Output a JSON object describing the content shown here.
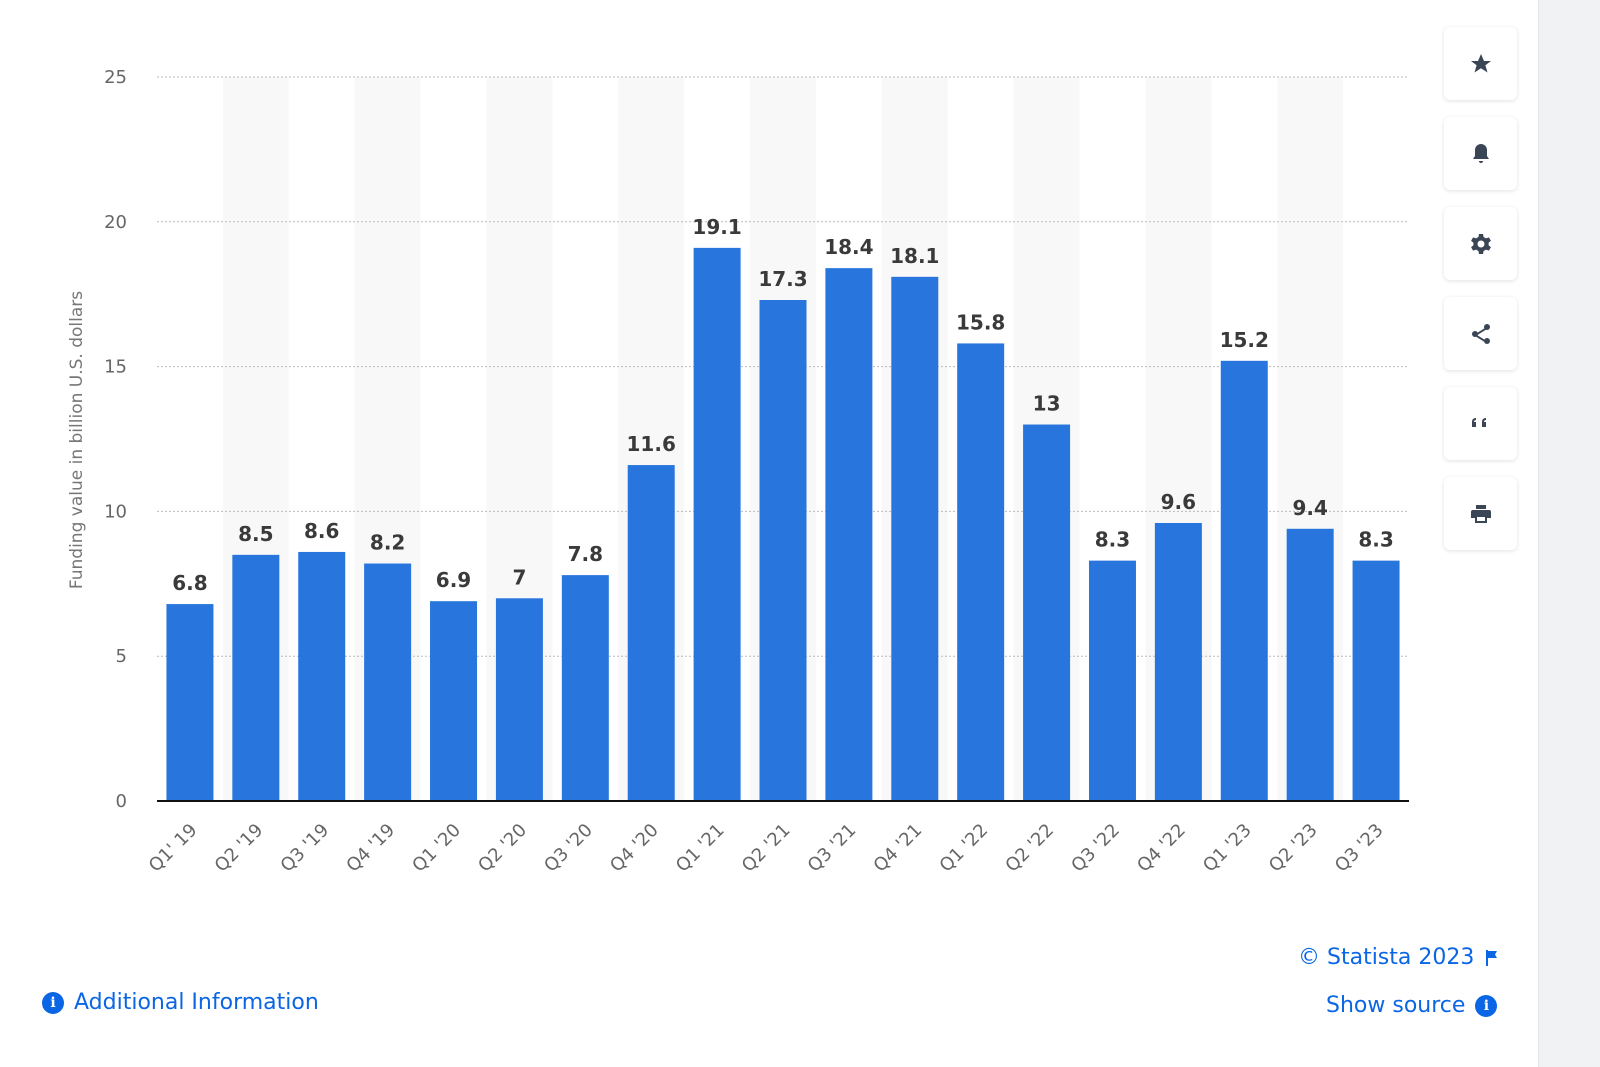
{
  "chart_data": {
    "type": "bar",
    "categories": [
      "Q1' 19",
      "Q2 '19",
      "Q3 '19",
      "Q4 '19",
      "Q1 '20",
      "Q2 '20",
      "Q3 '20",
      "Q4 '20",
      "Q1 '21",
      "Q2 '21",
      "Q3 '21",
      "Q4 '21",
      "Q1 '22",
      "Q2 '22",
      "Q3 '22",
      "Q4 '22",
      "Q1 '23",
      "Q2 '23",
      "Q3 '23"
    ],
    "values": [
      6.8,
      8.5,
      8.6,
      8.2,
      6.9,
      7,
      7.8,
      11.6,
      19.1,
      17.3,
      18.4,
      18.1,
      15.8,
      13,
      8.3,
      9.6,
      15.2,
      9.4,
      8.3
    ],
    "ylabel": "Funding value in billion U.S. dollars",
    "ylim": [
      0,
      25
    ],
    "yticks": [
      0,
      5,
      10,
      15,
      20,
      25
    ],
    "grid": true,
    "bar_color": "#2876dd"
  },
  "sidebar": {
    "buttons": [
      {
        "icon": "star-icon"
      },
      {
        "icon": "bell-icon"
      },
      {
        "icon": "gear-icon"
      },
      {
        "icon": "share-icon"
      },
      {
        "icon": "quote-icon"
      },
      {
        "icon": "print-icon"
      }
    ]
  },
  "footer": {
    "copyright": "© Statista 2023",
    "show_source": "Show source",
    "additional_info": "Additional Information",
    "link_color": "#0a66e4"
  }
}
